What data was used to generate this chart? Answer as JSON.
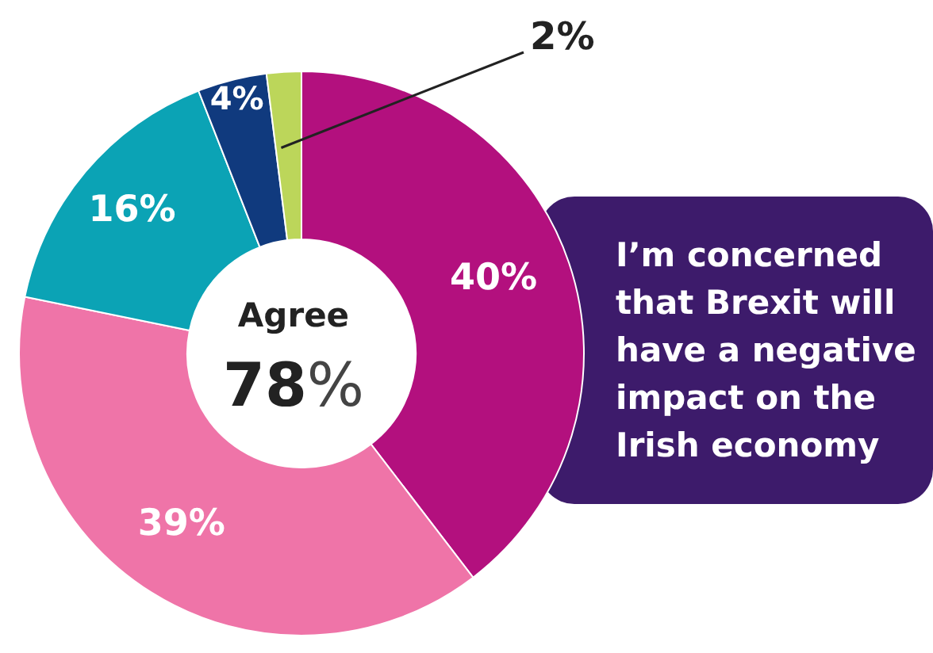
{
  "chart_data": {
    "type": "donut",
    "categories": [
      null,
      null,
      null,
      null,
      null
    ],
    "values": [
      40,
      39,
      16,
      4,
      2
    ],
    "colors": [
      "#b3107e",
      "#ef74a8",
      "#0ba3b5",
      "#103a7e",
      "#bcd65a"
    ],
    "value_labels": [
      "40%",
      "39%",
      "16%",
      "4%",
      "2%"
    ],
    "annotations": [
      "Agree",
      "78%",
      "I’m concerned that Brexit will have a negative impact on the Irish economy"
    ]
  }
}
